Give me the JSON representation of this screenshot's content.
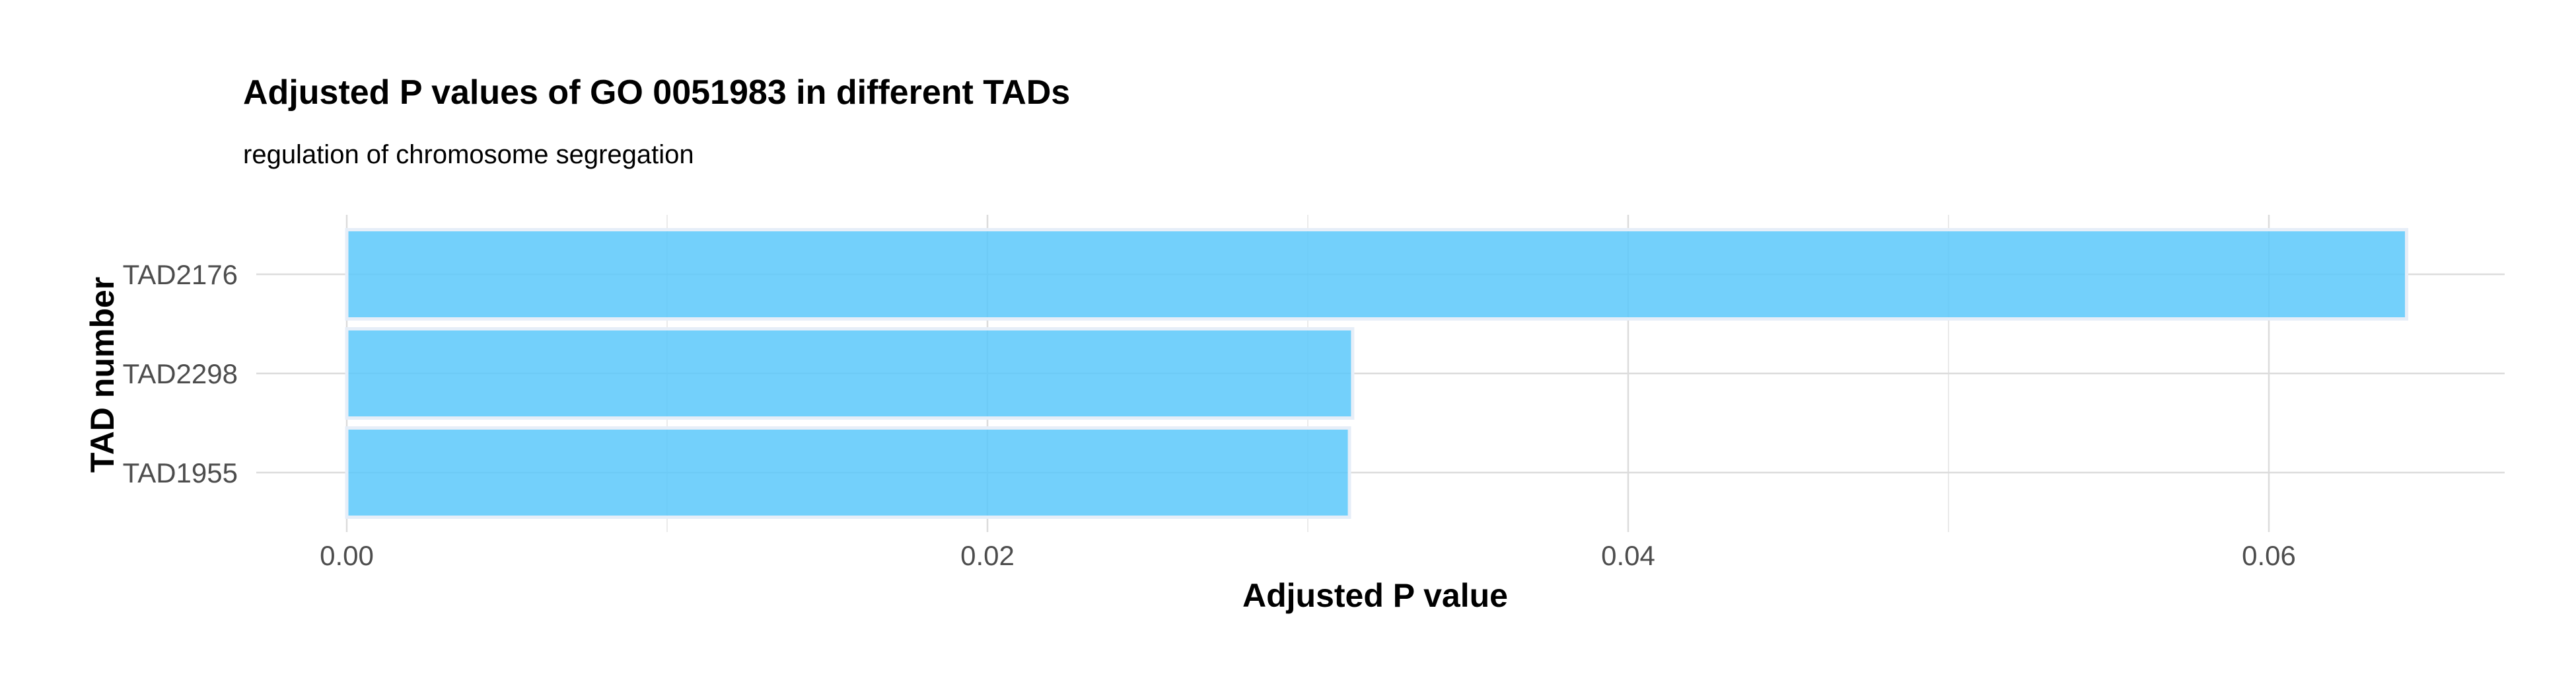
{
  "chart_data": {
    "type": "bar",
    "orientation": "horizontal",
    "title": "Adjusted P values of GO 0051983 in different TADs",
    "subtitle": "regulation of chromosome segregation",
    "xlabel": "Adjusted P value",
    "ylabel": "TAD number",
    "categories": [
      "TAD2176",
      "TAD2298",
      "TAD1955"
    ],
    "values": [
      0.0643,
      0.0314,
      0.0313
    ],
    "xlim": [
      0,
      0.0675
    ],
    "x_ticks": [
      0.0,
      0.02,
      0.04,
      0.06
    ],
    "x_tick_labels": [
      "0.00",
      "0.02",
      "0.04",
      "0.06"
    ],
    "grid": true,
    "bar_color": "#5BC8FA",
    "bar_outline_color": "#E6EEF8"
  }
}
